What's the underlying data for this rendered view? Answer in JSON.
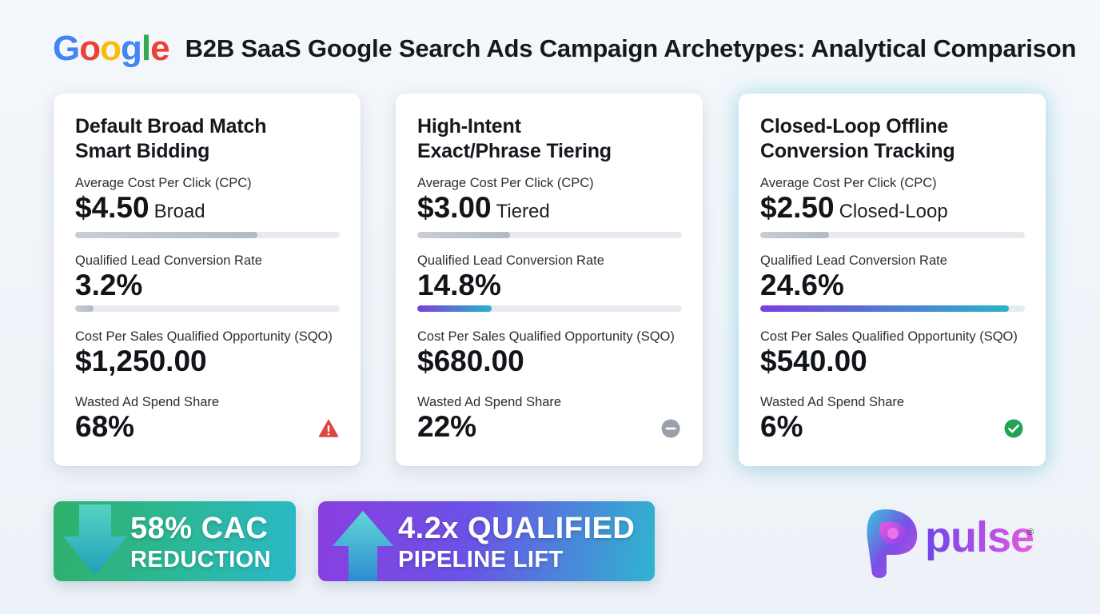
{
  "header": {
    "logo_text": "Google",
    "title": "B2B SaaS Google Search Ads Campaign Archetypes: Analytical Comparison"
  },
  "colors": {
    "google_blue": "#4285F4",
    "google_red": "#EA4335",
    "google_yellow": "#FBBC05",
    "google_green": "#34A853",
    "warning_red": "#e0463e",
    "neutral_gray": "#9aa1aa",
    "success_green": "#22a352"
  },
  "cards": [
    {
      "title_line1": "Default Broad Match",
      "title_line2": "Smart Bidding",
      "cpc_label": "Average Cost Per Click (CPC)",
      "cpc_value": "$4.50",
      "cpc_suffix": "Broad",
      "cpc_bar_fraction": 0.69,
      "conv_label": "Qualified Lead Conversion Rate",
      "conv_value": "3.2%",
      "conv_bar_fraction": 0.07,
      "sqo_label": "Cost Per Sales Qualified Opportunity (SQO)",
      "sqo_value": "$1,250.00",
      "waste_label": "Wasted Ad Spend Share",
      "waste_value": "68%",
      "status_icon": "warning-icon"
    },
    {
      "title_line1": "High-Intent",
      "title_line2": "Exact/Phrase Tiering",
      "cpc_label": "Average Cost Per Click (CPC)",
      "cpc_value": "$3.00",
      "cpc_suffix": "Tiered",
      "cpc_bar_fraction": 0.35,
      "conv_label": "Qualified Lead Conversion Rate",
      "conv_value": "14.8%",
      "conv_bar_fraction": 0.28,
      "sqo_label": "Cost Per Sales Qualified Opportunity (SQO)",
      "sqo_value": "$680.00",
      "waste_label": "Wasted Ad Spend Share",
      "waste_value": "22%",
      "status_icon": "neutral-minus-icon"
    },
    {
      "title_line1": "Closed-Loop Offline",
      "title_line2": "Conversion Tracking",
      "cpc_label": "Average Cost Per Click (CPC)",
      "cpc_value": "$2.50",
      "cpc_suffix": "Closed-Loop",
      "cpc_bar_fraction": 0.26,
      "conv_label": "Qualified Lead Conversion Rate",
      "conv_value": "24.6%",
      "conv_bar_fraction": 0.94,
      "sqo_label": "Cost Per Sales Qualified Opportunity (SQO)",
      "sqo_value": "$540.00",
      "waste_label": "Wasted Ad Spend Share",
      "waste_value": "6%",
      "status_icon": "check-circle-icon"
    }
  ],
  "badges": [
    {
      "line1": "58% CAC",
      "line2": "REDUCTION",
      "icon": "arrow-down-icon"
    },
    {
      "line1": "4.2x QUALIFIED",
      "line2": "PIPELINE LIFT",
      "icon": "arrow-up-icon"
    }
  ],
  "brand": {
    "name": "pulse",
    "mark": "®"
  }
}
